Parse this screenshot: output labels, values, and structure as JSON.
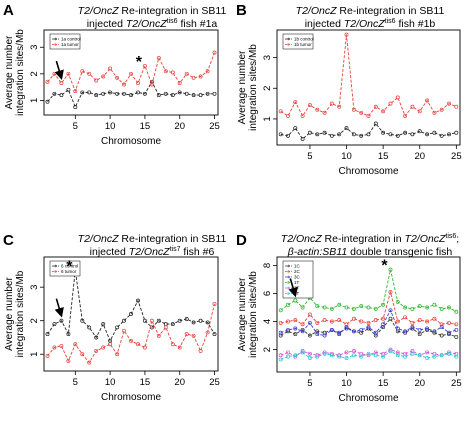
{
  "chart_data": [
    {
      "type": "line",
      "panel": "A",
      "title_line1_italic": "T2/OncZ",
      "title_line1_rest": " Re-integration in SB11",
      "title_line2_pre": "injected ",
      "title_line2_italic": "T2/OncZ",
      "title_line2_sup": "tis6",
      "title_line2_post": " fish #1a",
      "xlabel": "Chromosome",
      "ylabel_line1": "Average number",
      "ylabel_line2": "integration sites/Mb",
      "xlim": [
        0.5,
        25.5
      ],
      "ylim": [
        0.45,
        3.65
      ],
      "xticks": [
        "5",
        "10",
        "15",
        "20",
        "25"
      ],
      "yticks": [
        "1",
        "2",
        "3"
      ],
      "annotations": {
        "arrow_at": 3,
        "star_at": 15,
        "star": "*"
      },
      "x": [
        1,
        2,
        3,
        4,
        5,
        6,
        7,
        8,
        9,
        10,
        11,
        12,
        13,
        14,
        15,
        16,
        17,
        18,
        19,
        20,
        21,
        22,
        23,
        24,
        25
      ],
      "series": [
        {
          "name": "1a control",
          "color": "#222222",
          "marker": "circle",
          "values": [
            0.95,
            1.25,
            1.2,
            1.4,
            0.75,
            1.3,
            1.3,
            1.2,
            1.25,
            1.3,
            1.25,
            1.25,
            1.2,
            1.3,
            1.25,
            1.7,
            1.2,
            1.25,
            1.2,
            1.3,
            1.25,
            1.2,
            1.2,
            1.25,
            1.25
          ]
        },
        {
          "name": "1a tumor",
          "color": "#e8413b",
          "marker": "circle",
          "values": [
            1.7,
            2.0,
            1.65,
            2.0,
            1.35,
            2.1,
            2.0,
            1.75,
            1.9,
            2.2,
            1.85,
            1.6,
            2.0,
            1.65,
            2.3,
            1.6,
            2.6,
            2.1,
            2.05,
            1.65,
            2.0,
            1.85,
            1.9,
            2.1,
            2.8
          ]
        }
      ]
    },
    {
      "type": "line",
      "panel": "B",
      "title_line1_italic": "T2/OncZ",
      "title_line1_rest": " Re-integration in SB11",
      "title_line2_pre": "injected ",
      "title_line2_italic": "T2/OncZ",
      "title_line2_sup": "tis6",
      "title_line2_post": " fish #1b",
      "xlabel": "Chromosome",
      "ylabel_line1": "Average number",
      "ylabel_line2": "integration sites/Mb",
      "xlim": [
        0.5,
        25.5
      ],
      "ylim": [
        0.15,
        3.9
      ],
      "xticks": [
        "5",
        "10",
        "15",
        "20",
        "25"
      ],
      "yticks": [
        "1",
        "2",
        "3"
      ],
      "x": [
        1,
        2,
        3,
        4,
        5,
        6,
        7,
        8,
        9,
        10,
        11,
        12,
        13,
        14,
        15,
        16,
        17,
        18,
        19,
        20,
        21,
        22,
        23,
        24,
        25
      ],
      "series": [
        {
          "name": "1b control",
          "color": "#222222",
          "marker": "circle",
          "values": [
            0.5,
            0.45,
            0.7,
            0.35,
            0.55,
            0.5,
            0.55,
            0.45,
            0.5,
            0.7,
            0.5,
            0.45,
            0.5,
            0.85,
            0.55,
            0.5,
            0.45,
            0.55,
            0.5,
            0.6,
            0.5,
            0.55,
            0.45,
            0.5,
            0.55
          ]
        },
        {
          "name": "1b tumor",
          "color": "#e8413b",
          "marker": "circle",
          "values": [
            1.25,
            1.1,
            1.55,
            1.1,
            1.45,
            1.3,
            1.2,
            1.5,
            1.4,
            3.75,
            1.3,
            1.2,
            1.1,
            1.4,
            1.25,
            1.5,
            1.7,
            1.1,
            1.4,
            1.25,
            1.6,
            1.2,
            1.3,
            1.5,
            1.4
          ]
        }
      ]
    },
    {
      "type": "line",
      "panel": "C",
      "title_line1_italic": "T2/OncZ",
      "title_line1_rest": " Re-integration in SB11",
      "title_line2_pre": "injected ",
      "title_line2_italic": "T2/OncZ",
      "title_line2_sup": "tis7",
      "title_line2_post": " fish #6",
      "xlabel": "Chromosome",
      "ylabel_line1": "Average number",
      "ylabel_line2": "integration sites/Mb",
      "xlim": [
        0.5,
        25.5
      ],
      "ylim": [
        0.5,
        3.9
      ],
      "xticks": [
        "5",
        "10",
        "15",
        "20",
        "25"
      ],
      "yticks": [
        "1",
        "2",
        "3"
      ],
      "annotations": {
        "arrow_at": 3,
        "star_at": 5,
        "star": "*"
      },
      "x": [
        1,
        2,
        3,
        4,
        5,
        6,
        7,
        8,
        9,
        10,
        11,
        12,
        13,
        14,
        15,
        16,
        17,
        18,
        19,
        20,
        21,
        22,
        23,
        24,
        25
      ],
      "series": [
        {
          "name": "6 control",
          "color": "#222222",
          "marker": "circle",
          "values": [
            1.6,
            1.9,
            2.0,
            1.6,
            3.5,
            2.0,
            1.8,
            1.5,
            1.9,
            1.4,
            1.8,
            2.0,
            2.2,
            2.6,
            2.0,
            1.8,
            2.0,
            1.9,
            1.9,
            2.0,
            2.05,
            1.95,
            2.0,
            1.95,
            1.6
          ]
        },
        {
          "name": "6 tumor",
          "color": "#e8413b",
          "marker": "circle",
          "values": [
            0.95,
            1.2,
            1.25,
            0.8,
            1.3,
            1.0,
            0.75,
            1.1,
            1.2,
            1.3,
            1.0,
            1.7,
            1.4,
            1.3,
            1.2,
            2.0,
            1.55,
            1.8,
            1.3,
            1.2,
            1.6,
            1.55,
            1.1,
            1.65,
            2.5
          ]
        }
      ]
    },
    {
      "type": "line",
      "panel": "D",
      "title_line1_italic": "T2/OncZ",
      "title_line1_rest": " Re-integration in ",
      "title_line1_italic2": "T2/OncZ",
      "title_line1_sup": "tis6",
      "title_line1_post": ";",
      "title_line2_italic": "β-actin:SB11",
      "title_line2_post": " double transgenic fish",
      "xlabel": "Chromosome",
      "ylabel_line1": "Average number",
      "ylabel_line2": "integration sites/Mb",
      "xlim": [
        0.5,
        25.5
      ],
      "ylim": [
        0.4,
        8.6
      ],
      "xticks": [
        "5",
        "10",
        "15",
        "20",
        "25"
      ],
      "yticks": [
        "2",
        "4",
        "6",
        "8"
      ],
      "annotations": {
        "arrow_at": 3,
        "star_at": 16,
        "star": "*"
      },
      "x": [
        1,
        2,
        3,
        4,
        5,
        6,
        7,
        8,
        9,
        10,
        11,
        12,
        13,
        14,
        15,
        16,
        17,
        18,
        19,
        20,
        21,
        22,
        23,
        24,
        25
      ],
      "series": [
        {
          "name": "1C",
          "color": "#333333",
          "marker": "circle",
          "values": [
            3.0,
            3.3,
            3.1,
            3.4,
            3.0,
            3.3,
            3.2,
            3.4,
            3.1,
            3.6,
            3.3,
            3.2,
            3.5,
            3.0,
            3.6,
            4.2,
            3.3,
            3.2,
            3.5,
            3.1,
            3.4,
            3.2,
            3.0,
            3.1,
            2.9
          ]
        },
        {
          "name": "2C",
          "color": "#e8413b",
          "marker": "circle",
          "values": [
            3.9,
            4.0,
            4.1,
            3.8,
            4.5,
            3.9,
            4.1,
            4.0,
            4.1,
            3.8,
            4.2,
            4.0,
            3.9,
            4.1,
            4.2,
            6.1,
            4.0,
            4.3,
            3.9,
            4.1,
            4.0,
            4.2,
            3.8,
            3.9,
            3.8
          ]
        },
        {
          "name": "3C",
          "color": "#3a3ad0",
          "marker": "circle",
          "values": [
            3.2,
            3.4,
            3.5,
            3.3,
            3.9,
            3.1,
            3.0,
            3.4,
            3.2,
            3.5,
            3.3,
            3.4,
            3.6,
            3.2,
            3.8,
            4.8,
            3.5,
            3.3,
            3.6,
            3.4,
            3.5,
            3.3,
            3.6,
            3.2,
            3.4
          ]
        },
        {
          "name": "1T",
          "color": "#2fb52f",
          "marker": "circle",
          "values": [
            4.8,
            5.2,
            5.5,
            5.0,
            5.7,
            5.1,
            5.0,
            4.9,
            5.2,
            5.0,
            4.9,
            5.1,
            5.0,
            4.9,
            5.2,
            7.7,
            5.4,
            5.0,
            4.9,
            5.1,
            5.0,
            5.2,
            4.9,
            5.0,
            4.7
          ]
        },
        {
          "name": "2T",
          "color": "#d64fd6",
          "marker": "circle",
          "values": [
            1.6,
            1.8,
            1.5,
            1.9,
            1.7,
            1.6,
            1.8,
            1.7,
            1.6,
            1.8,
            1.9,
            1.7,
            1.6,
            1.8,
            1.7,
            2.0,
            1.8,
            1.7,
            1.9,
            1.6,
            1.8,
            1.7,
            1.6,
            1.8,
            1.7
          ]
        },
        {
          "name": "3T",
          "color": "#26c6d6",
          "marker": "circle",
          "values": [
            1.3,
            1.5,
            1.6,
            1.8,
            1.4,
            1.5,
            1.7,
            1.6,
            1.5,
            1.4,
            1.6,
            1.5,
            1.7,
            1.6,
            1.5,
            1.9,
            1.6,
            1.5,
            1.7,
            1.6,
            1.4,
            1.5,
            1.6,
            1.7,
            1.5
          ]
        }
      ]
    }
  ]
}
